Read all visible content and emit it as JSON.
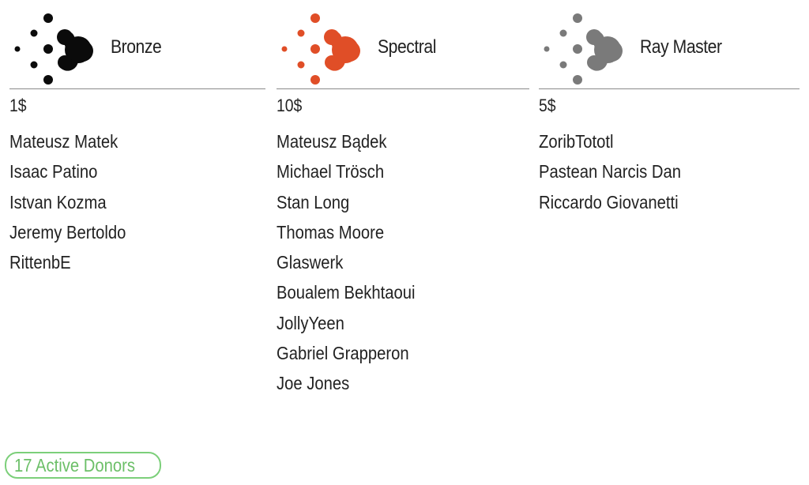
{
  "tiers": [
    {
      "name": "Bronze",
      "price": "1$",
      "icon": "molecule-icon",
      "color": "#0b0b0b",
      "donors": [
        "Mateusz Matek",
        "Isaac Patino",
        "Istvan Kozma",
        "Jeremy Bertoldo",
        "RittenbE"
      ]
    },
    {
      "name": "Spectral",
      "price": "10$",
      "icon": "molecule-icon",
      "color": "#e04e27",
      "donors": [
        "Mateusz Bądek",
        "Michael Trösch",
        "Stan Long",
        "Thomas Moore",
        "Glaswerk",
        "Boualem Bekhtaoui",
        "JollyYeen",
        "Gabriel Grapperon",
        "Joe Jones"
      ]
    },
    {
      "name": "Ray Master",
      "price": "5$",
      "icon": "molecule-icon",
      "color": "#7a7a7a",
      "donors": [
        "ZoribTototl",
        "Pastean Narcis Dan",
        "Riccardo Giovanetti"
      ]
    }
  ],
  "active_donors": {
    "label": "17 Active Donors",
    "color": "#6cbf68"
  }
}
